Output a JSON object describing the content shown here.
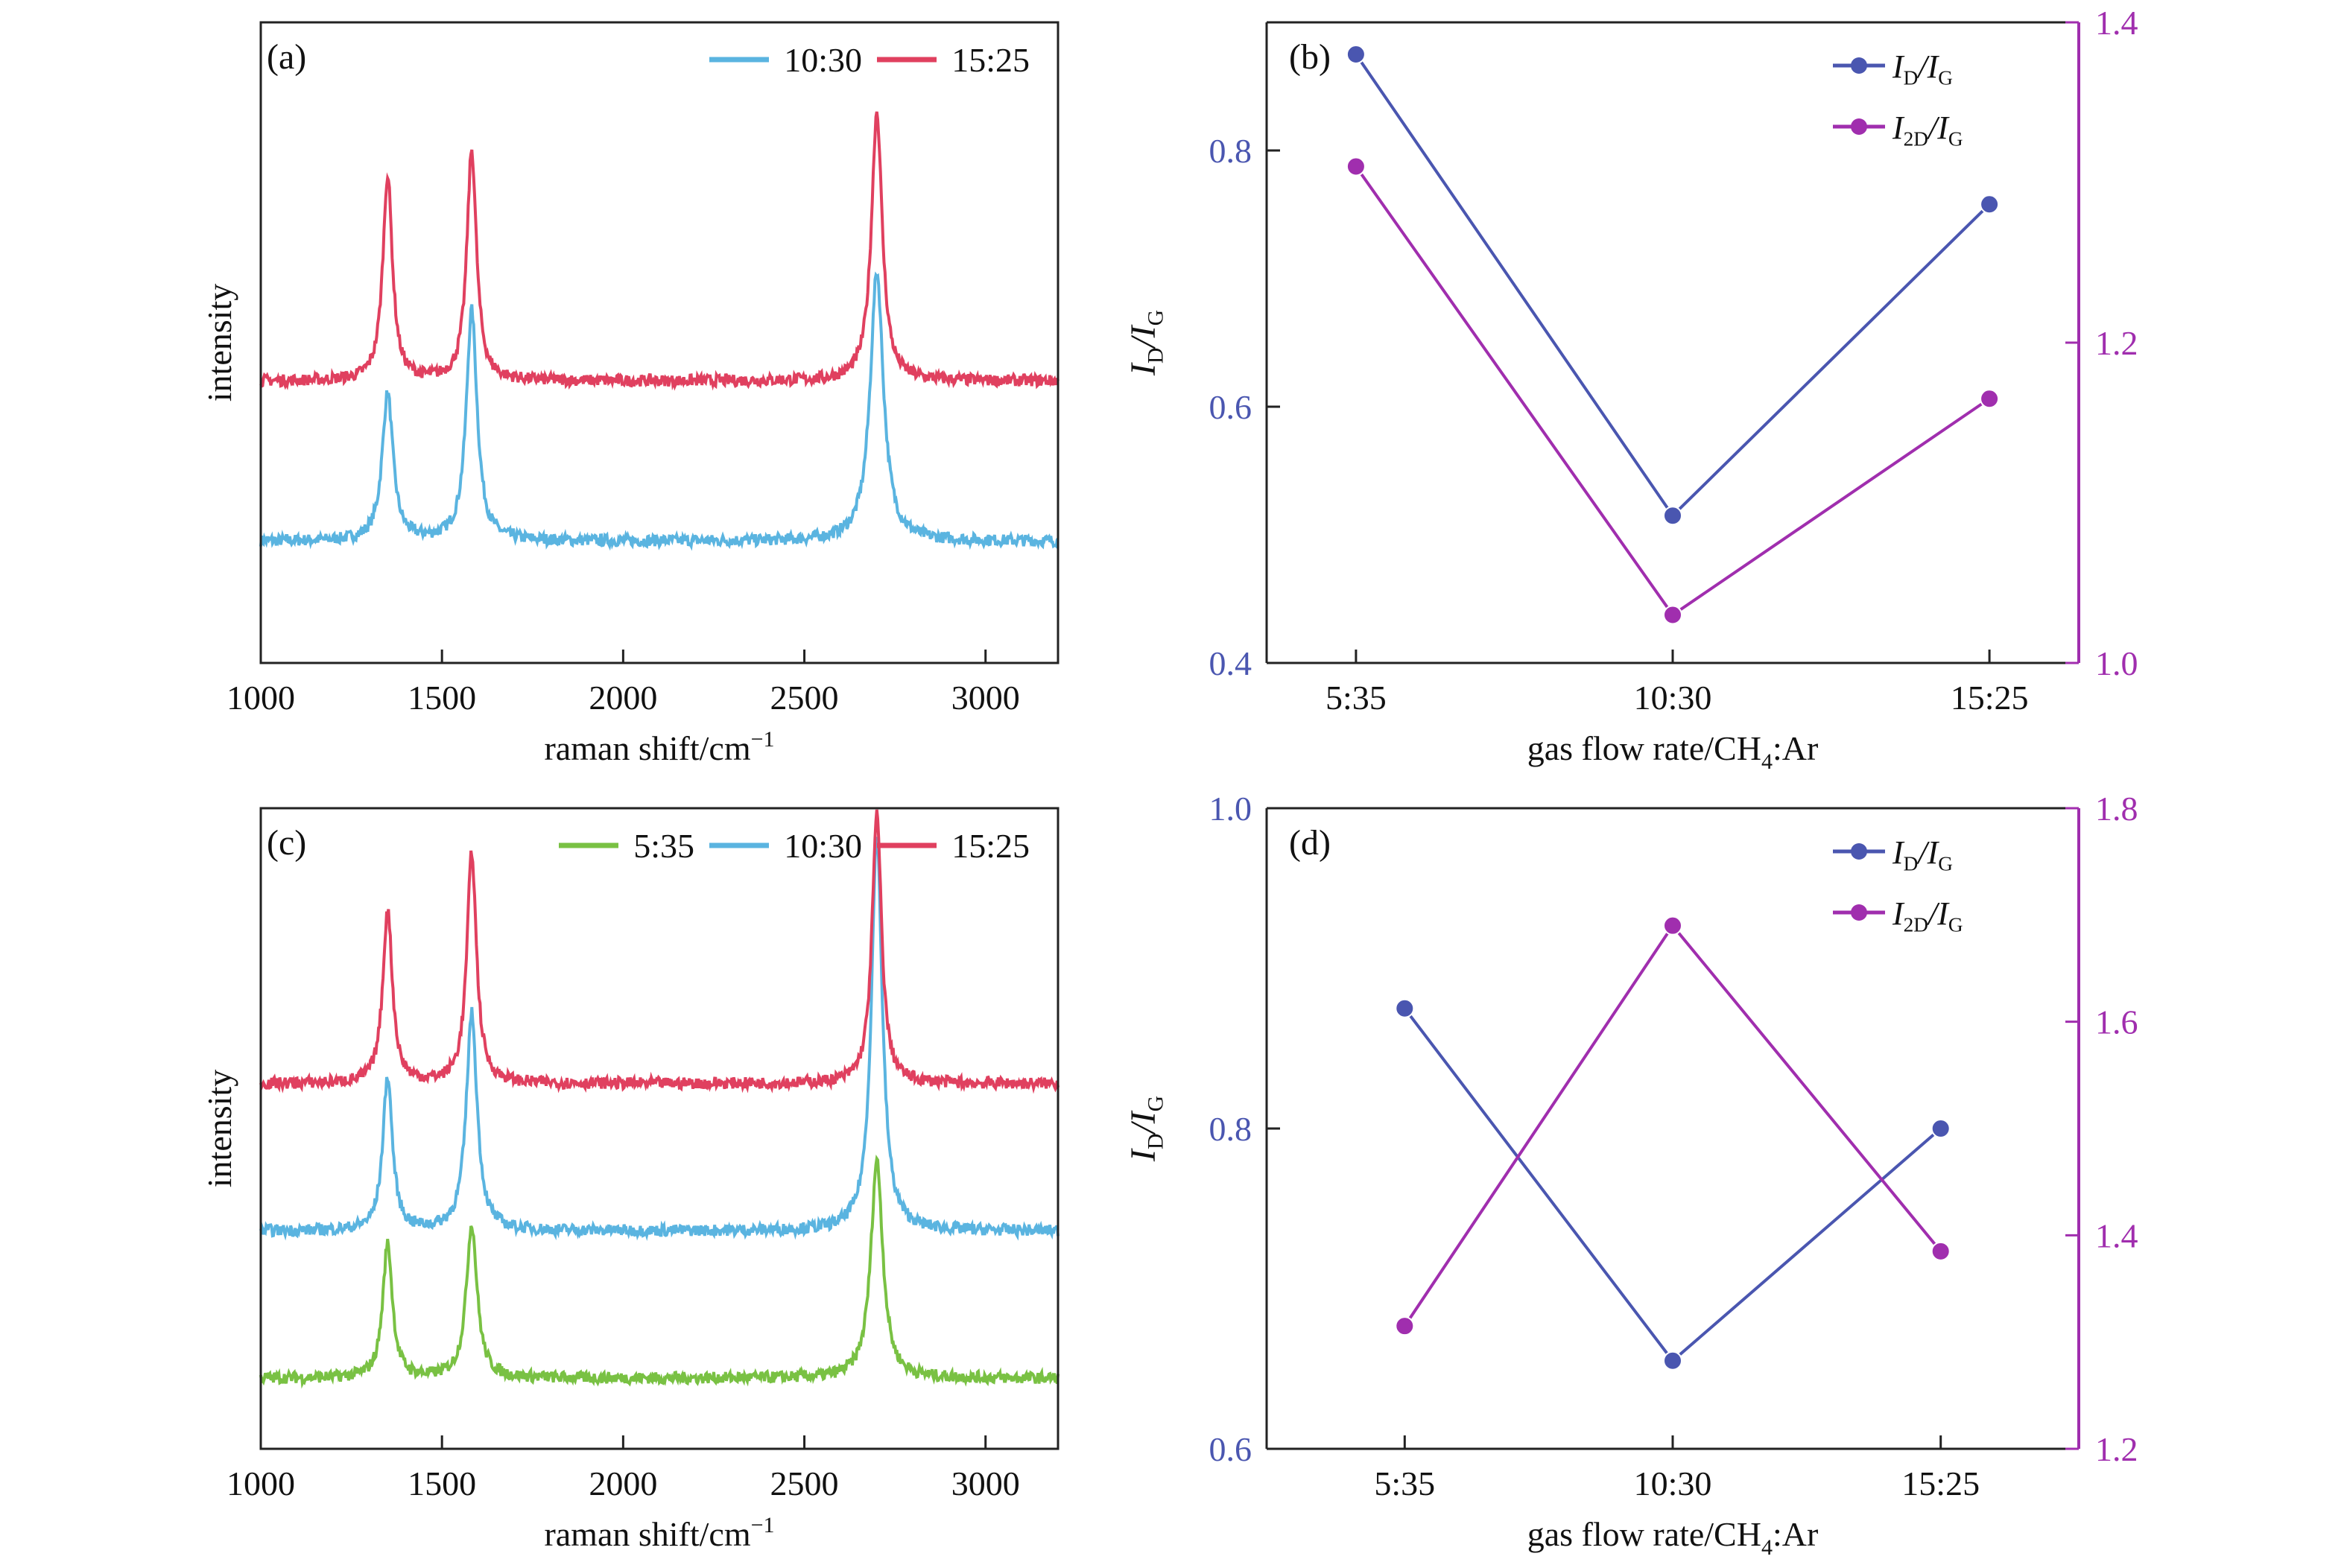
{
  "chart_data": [
    {
      "id": "a",
      "panel_label": "(a)",
      "type": "line",
      "title": "",
      "xlabel": "raman shift/cm",
      "xlabel_sup": "−1",
      "ylabel": "intensity",
      "xlim": [
        1000,
        3200
      ],
      "xticks": [
        1000,
        1500,
        2000,
        2500,
        3000
      ],
      "ylim": [
        0,
        1
      ],
      "legend_position": "top-right",
      "series": [
        {
          "name": "10:30",
          "color": "#5ab4e0",
          "baseline": 0.19,
          "peaks": [
            [
              1350,
              0.23,
              18
            ],
            [
              1582,
              0.36,
              18
            ],
            [
              2700,
              0.42,
              22
            ]
          ]
        },
        {
          "name": "15:25",
          "color": "#e0405f",
          "baseline": 0.44,
          "peaks": [
            [
              1350,
              0.32,
              16
            ],
            [
              1582,
              0.36,
              16
            ],
            [
              2700,
              0.42,
              18
            ]
          ]
        }
      ]
    },
    {
      "id": "b",
      "panel_label": "(b)",
      "type": "line",
      "title": "",
      "xlabel": "gas flow rate/CH",
      "xlabel_sub": "4",
      "xlabel_tail": ":Ar",
      "categories": [
        "5:35",
        "10:30",
        "15:25"
      ],
      "ylabel_left": {
        "main": "I",
        "sub": "D",
        "mid": "/I",
        "sub2": "G"
      },
      "ylim_left": [
        0.4,
        0.9
      ],
      "yticks_left": [
        0.4,
        0.6,
        0.8
      ],
      "ylim_right": [
        1.0,
        1.4
      ],
      "yticks_right": [
        1.0,
        1.2,
        1.4
      ],
      "legend_position": "top-right",
      "series": [
        {
          "name": "ID/IG",
          "legend": {
            "main": "I",
            "sub": "D",
            "mid": "/I",
            "sub2": "G"
          },
          "axis": "left",
          "color": "#4a56b0",
          "values": [
            0.875,
            0.515,
            0.758
          ]
        },
        {
          "name": "I2D/IG",
          "legend": {
            "main": "I",
            "sub": "2D",
            "mid": "/I",
            "sub2": "G"
          },
          "axis": "right",
          "color": "#a02eae",
          "values": [
            1.31,
            1.03,
            1.165
          ]
        }
      ]
    },
    {
      "id": "c",
      "panel_label": "(c)",
      "type": "line",
      "title": "",
      "xlabel": "raman shift/cm",
      "xlabel_sup": "−1",
      "ylabel": "intensity",
      "xlim": [
        1000,
        3200
      ],
      "xticks": [
        1000,
        1500,
        2000,
        2500,
        3000
      ],
      "ylim": [
        0,
        1
      ],
      "legend_position": "top-right",
      "series": [
        {
          "name": "5:35",
          "color": "#79c143",
          "baseline": 0.11,
          "peaks": [
            [
              1350,
              0.21,
              16
            ],
            [
              1582,
              0.24,
              18
            ],
            [
              2700,
              0.34,
              20
            ]
          ]
        },
        {
          "name": "10:30",
          "color": "#5ab4e0",
          "baseline": 0.34,
          "peaks": [
            [
              1350,
              0.24,
              16
            ],
            [
              1582,
              0.34,
              18
            ],
            [
              2700,
              0.62,
              18
            ]
          ]
        },
        {
          "name": "15:25",
          "color": "#e0405f",
          "baseline": 0.57,
          "peaks": [
            [
              1350,
              0.27,
              16
            ],
            [
              1582,
              0.36,
              16
            ],
            [
              2700,
              0.42,
              16
            ]
          ]
        }
      ]
    },
    {
      "id": "d",
      "panel_label": "(d)",
      "type": "line",
      "title": "",
      "xlabel": "gas flow rate/CH",
      "xlabel_sub": "4",
      "xlabel_tail": ":Ar",
      "categories": [
        "5:35",
        "10:30",
        "15:25"
      ],
      "ylabel_left": {
        "main": "I",
        "sub": "D",
        "mid": "/I",
        "sub2": "G"
      },
      "ylim_left": [
        0.6,
        1.0
      ],
      "yticks_left": [
        0.6,
        0.8,
        1.0
      ],
      "ylim_right": [
        1.2,
        1.8
      ],
      "yticks_right": [
        1.2,
        1.4,
        1.6,
        1.8
      ],
      "legend_position": "top-right",
      "series": [
        {
          "name": "ID/IG",
          "legend": {
            "main": "I",
            "sub": "D",
            "mid": "/I",
            "sub2": "G"
          },
          "axis": "left",
          "color": "#4a56b0",
          "values": [
            0.875,
            0.655,
            0.8
          ]
        },
        {
          "name": "I2D/IG",
          "legend": {
            "main": "I",
            "sub": "2D",
            "mid": "/I",
            "sub2": "G"
          },
          "axis": "right",
          "color": "#a02eae",
          "values": [
            1.315,
            1.69,
            1.385
          ]
        }
      ]
    }
  ]
}
